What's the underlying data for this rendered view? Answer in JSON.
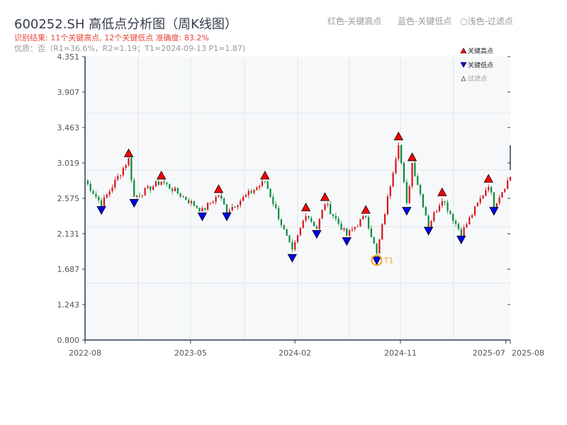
{
  "header": {
    "title": "600252.SH 高低点分析图（周K线图）",
    "result": "识别结果: 11个关键高点, 12个关键低点   准确度: 83.2%",
    "quality": "优质：否（R1=36.6%，R2=1.19；T1=2024-09-13 P1=1.87)",
    "legend_red": "红色-关键高点",
    "legend_blue": "蓝色-关键低点",
    "legend_filtered": "○浅色-过滤点"
  },
  "chart_data": {
    "type": "candlestick",
    "title": "600252.SH 高低点分析图（周K线图）",
    "ylim": [
      0.8,
      4.351
    ],
    "yticks": [
      "4.351",
      "3.907",
      "3.463",
      "3.019",
      "2.575",
      "2.131",
      "1.687",
      "1.243",
      "0.800"
    ],
    "xticks": [
      {
        "label": "2022-08",
        "week": 0
      },
      {
        "label": "2023-05",
        "week": 38.7
      },
      {
        "label": "2024-02",
        "week": 77
      },
      {
        "label": "2024-11",
        "week": 115.7
      },
      {
        "label": "2025-07",
        "week": 154.4
      },
      {
        "label": "2025-08",
        "week": 156
      }
    ],
    "weeks": 156,
    "start_price": 2.8,
    "end_price": 2.85,
    "key_highs": [
      {
        "week": 16,
        "price": 3.07
      },
      {
        "week": 28,
        "price": 2.79
      },
      {
        "week": 49,
        "price": 2.62
      },
      {
        "week": 66,
        "price": 2.79
      },
      {
        "week": 81,
        "price": 2.39
      },
      {
        "week": 88,
        "price": 2.52
      },
      {
        "week": 103,
        "price": 2.36
      },
      {
        "week": 115,
        "price": 3.28
      },
      {
        "week": 120,
        "price": 3.02
      },
      {
        "week": 131,
        "price": 2.58
      },
      {
        "week": 148,
        "price": 2.75
      }
    ],
    "key_lows": [
      {
        "week": 6,
        "price": 2.5
      },
      {
        "week": 18,
        "price": 2.59
      },
      {
        "week": 43,
        "price": 2.42
      },
      {
        "week": 52,
        "price": 2.42
      },
      {
        "week": 76,
        "price": 1.9
      },
      {
        "week": 85,
        "price": 2.2
      },
      {
        "week": 96,
        "price": 2.11
      },
      {
        "week": 107,
        "price": 1.87
      },
      {
        "week": 118,
        "price": 2.49
      },
      {
        "week": 126,
        "price": 2.24
      },
      {
        "week": 138,
        "price": 2.13
      },
      {
        "week": 150,
        "price": 2.49
      }
    ],
    "annotation": {
      "label": "T1",
      "week": 107,
      "price": 1.87
    },
    "legend": [
      "关键高点",
      "关键低点",
      "过滤点"
    ],
    "colors": {
      "up": "#d7141a",
      "down": "#0b8a3c",
      "high": "#ff0000",
      "low": "#0000ee",
      "t1": "#f5a623"
    }
  }
}
